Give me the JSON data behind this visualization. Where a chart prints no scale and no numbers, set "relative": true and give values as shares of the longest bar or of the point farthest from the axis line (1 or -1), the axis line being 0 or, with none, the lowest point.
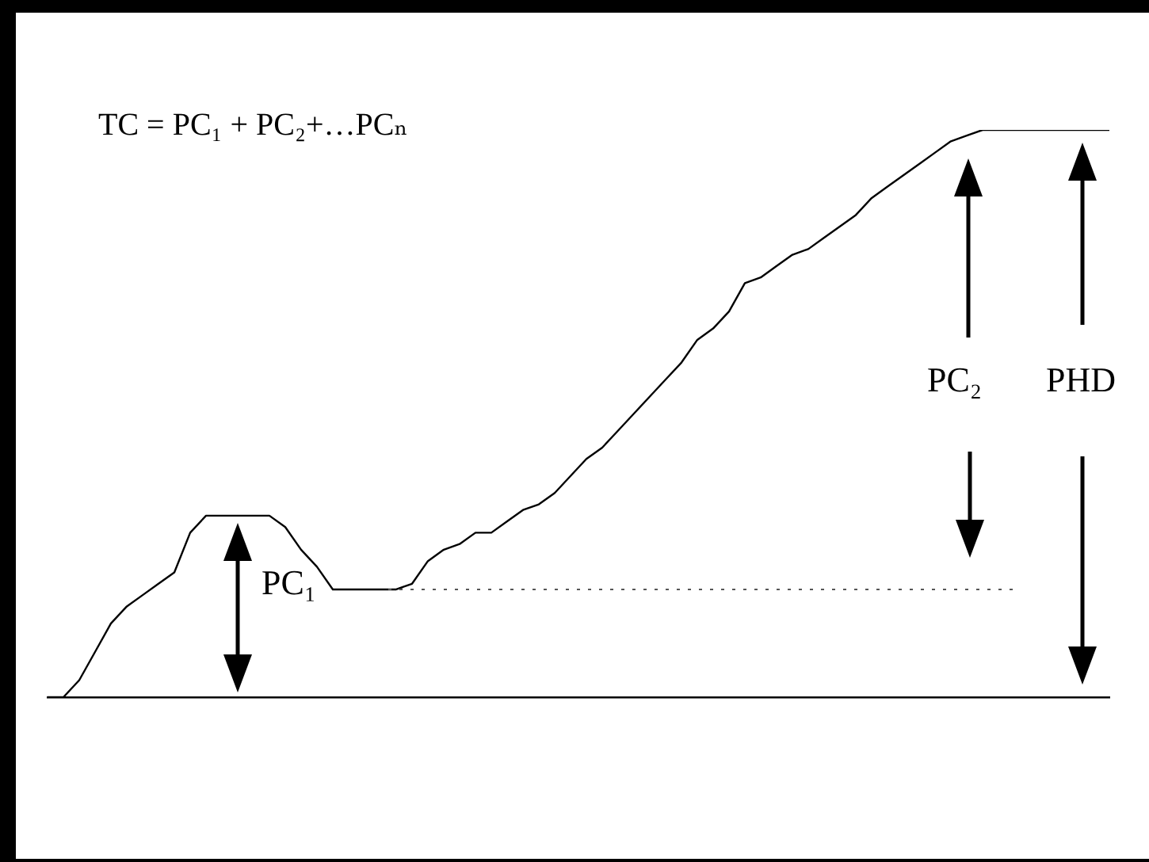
{
  "chart_data": {
    "type": "line",
    "title": "TC = PC₁ + PC₂+…PCₙ",
    "relative": true,
    "grid": false,
    "legend": false,
    "marker": "none",
    "line_style": "solid",
    "categories": [
      null,
      null,
      null,
      null,
      null,
      null,
      null,
      null,
      null,
      null,
      null,
      null,
      null,
      null,
      null,
      null,
      null,
      null,
      null,
      null,
      null,
      null,
      null,
      null,
      null,
      null,
      null,
      null,
      null,
      null,
      null,
      null,
      null,
      null,
      null,
      null,
      null,
      null,
      null,
      null,
      null,
      null,
      null,
      null,
      null,
      null,
      null,
      null,
      null,
      null,
      null,
      null,
      null,
      null,
      null,
      null,
      null,
      null,
      null,
      null,
      null,
      null,
      null,
      null,
      null,
      null,
      null,
      null
    ],
    "series": [
      {
        "color": "#000000",
        "values": [
          0,
          0,
          0.03,
          0.08,
          0.13,
          0.16,
          0.18,
          0.2,
          0.22,
          0.29,
          0.32,
          0.32,
          0.32,
          0.32,
          0.32,
          0.3,
          0.26,
          0.23,
          0.19,
          0.19,
          0.19,
          0.19,
          0.19,
          0.2,
          0.24,
          0.26,
          0.27,
          0.29,
          0.29,
          0.31,
          0.33,
          0.34,
          0.36,
          0.39,
          0.42,
          0.44,
          0.47,
          0.5,
          0.53,
          0.56,
          0.59,
          0.63,
          0.65,
          0.68,
          0.73,
          0.74,
          0.76,
          0.78,
          0.79,
          0.81,
          0.83,
          0.85,
          0.88,
          0.9,
          0.92,
          0.94,
          0.96,
          0.98,
          0.99,
          1,
          1,
          1,
          1,
          1,
          1,
          1,
          1,
          1
        ]
      }
    ],
    "ref_lines": [
      {
        "axis": "y",
        "value": 0.19,
        "color": "#555555",
        "line_style": "dotted"
      }
    ],
    "annotations": [
      "PC₁",
      "PC₂",
      "PHD"
    ]
  }
}
